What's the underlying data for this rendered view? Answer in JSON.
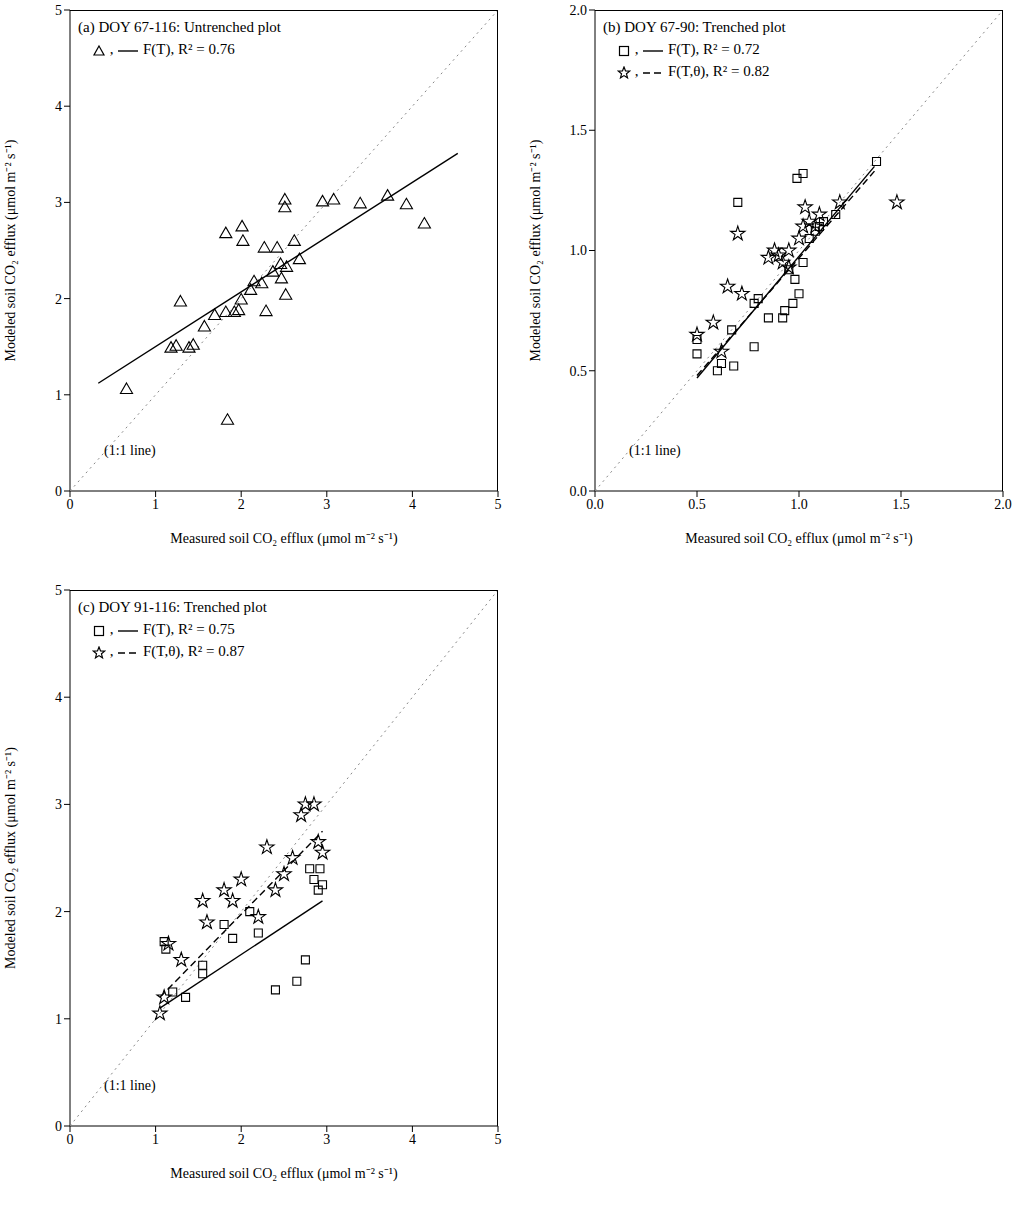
{
  "chart_data": [
    {
      "type": "scatter",
      "title": "(a) DOY 67-116: Untrenched plot",
      "x_label": "Measured soil CO₂ efflux (μmol m⁻² s⁻¹)",
      "y_label": "Modeled soil CO₂ efflux (μmol m⁻² s⁻¹)",
      "xlim": [
        0,
        5
      ],
      "ylim": [
        0,
        5
      ],
      "xticks": [
        0,
        1,
        2,
        3,
        4,
        5
      ],
      "yticks": [
        0,
        1,
        2,
        3,
        4,
        5
      ],
      "series": [
        {
          "name": "F(T), R² = 0.76",
          "marker": "triangle",
          "line_style": "solid",
          "color": "#000000",
          "x": [
            0.66,
            1.18,
            1.29,
            1.24,
            1.39,
            1.44,
            1.57,
            1.69,
            1.82,
            1.92,
            1.97,
            2.0,
            2.11,
            2.15,
            2.24,
            2.37,
            2.46,
            2.53,
            2.52,
            2.29,
            1.82,
            2.01,
            2.27,
            2.42,
            2.62,
            2.51,
            2.51,
            2.95,
            3.08,
            3.39,
            3.71,
            3.93,
            4.14,
            1.84,
            2.02,
            2.47,
            2.68
          ],
          "y": [
            1.05,
            1.48,
            1.96,
            1.5,
            1.48,
            1.51,
            1.7,
            1.82,
            1.85,
            1.85,
            1.87,
            1.98,
            2.08,
            2.17,
            2.15,
            2.27,
            2.35,
            2.32,
            2.03,
            1.86,
            2.67,
            2.74,
            2.52,
            2.52,
            2.59,
            2.94,
            3.02,
            3.0,
            3.02,
            2.98,
            3.06,
            2.97,
            2.77,
            0.73,
            2.59,
            2.2,
            2.4
          ],
          "fit_x": [
            0.33,
            4.53
          ],
          "fit_y": [
            1.12,
            3.51
          ]
        },
        {
          "name": "(1:1 line)",
          "type": "line",
          "line_style": "dotted",
          "color": "#888888",
          "x": [
            0,
            5
          ],
          "y": [
            0,
            5
          ]
        }
      ]
    },
    {
      "type": "scatter",
      "title": "(b) DOY 67-90: Trenched plot",
      "x_label": "Measured soil CO₂ efflux (μmol m⁻² s⁻¹)",
      "y_label": "Modeled soil CO₂ efflux (μmol m⁻² s⁻¹)",
      "xlim": [
        0,
        2
      ],
      "ylim": [
        0,
        2
      ],
      "xticks": [
        {
          "value": 0,
          "label": "0.0"
        },
        {
          "value": 0.5,
          "label": "0.5"
        },
        {
          "value": 1,
          "label": "1.0"
        },
        {
          "value": 1.5,
          "label": "1.5"
        },
        {
          "value": 2,
          "label": "2.0"
        }
      ],
      "yticks": [
        {
          "value": 0,
          "label": "0.0"
        },
        {
          "value": 0.5,
          "label": "0.5"
        },
        {
          "value": 1,
          "label": "1.0"
        },
        {
          "value": 1.5,
          "label": "1.5"
        },
        {
          "value": 2,
          "label": "2.0"
        }
      ],
      "series": [
        {
          "name": "F(T), R² = 0.72",
          "marker": "square",
          "line_style": "solid",
          "color": "#000000",
          "x": [
            0.5,
            0.5,
            0.6,
            0.62,
            0.68,
            0.7,
            0.78,
            0.78,
            0.8,
            0.85,
            0.92,
            0.93,
            0.97,
            1.0,
            0.98,
            1.02,
            0.99,
            1.02,
            1.05,
            1.08,
            1.1,
            1.12,
            1.18,
            1.38,
            0.67,
            0.95
          ],
          "y": [
            0.57,
            0.63,
            0.5,
            0.53,
            0.52,
            1.2,
            0.6,
            0.78,
            0.8,
            0.72,
            0.72,
            0.75,
            0.78,
            0.82,
            0.88,
            0.95,
            1.3,
            1.32,
            1.05,
            1.08,
            1.1,
            1.12,
            1.15,
            1.37,
            0.67,
            0.92
          ],
          "fit_x": [
            0.5,
            1.37
          ],
          "fit_y": [
            0.47,
            1.35
          ]
        },
        {
          "name": "F(T,θ), R² = 0.82",
          "marker": "star",
          "line_style": "dashed",
          "color": "#000000",
          "x": [
            0.5,
            0.58,
            0.62,
            0.65,
            0.7,
            0.72,
            0.85,
            0.88,
            0.9,
            0.92,
            0.95,
            1.0,
            1.02,
            1.03,
            1.05,
            1.08,
            1.1,
            1.2,
            1.48,
            0.95
          ],
          "y": [
            0.65,
            0.7,
            0.58,
            0.85,
            1.07,
            0.82,
            0.97,
            1.0,
            0.98,
            0.95,
            1.0,
            1.05,
            1.1,
            1.18,
            1.12,
            1.1,
            1.15,
            1.2,
            1.2,
            0.93
          ],
          "fit_x": [
            0.5,
            1.37
          ],
          "fit_y": [
            0.48,
            1.33
          ]
        },
        {
          "name": "(1:1 line)",
          "type": "line",
          "line_style": "dotted",
          "color": "#888888",
          "x": [
            0,
            2
          ],
          "y": [
            0,
            2
          ]
        }
      ]
    },
    {
      "type": "scatter",
      "title": "(c) DOY 91-116: Trenched plot",
      "x_label": "Measured soil CO₂ efflux (μmol m⁻² s⁻¹)",
      "y_label": "Modeled soil CO₂ efflux (μmol m⁻² s⁻¹)",
      "xlim": [
        0,
        5
      ],
      "ylim": [
        0,
        5
      ],
      "xticks": [
        0,
        1,
        2,
        3,
        4,
        5
      ],
      "yticks": [
        0,
        1,
        2,
        3,
        4,
        5
      ],
      "series": [
        {
          "name": "F(T), R² = 0.75",
          "marker": "square",
          "line_style": "solid",
          "color": "#000000",
          "x": [
            1.1,
            1.12,
            1.2,
            1.35,
            1.55,
            1.55,
            1.8,
            1.9,
            2.1,
            2.2,
            2.4,
            2.65,
            2.75,
            2.8,
            2.85,
            2.9,
            2.95,
            2.92
          ],
          "y": [
            1.72,
            1.65,
            1.25,
            1.2,
            1.5,
            1.42,
            1.88,
            1.75,
            2.0,
            1.8,
            1.27,
            1.35,
            1.55,
            2.4,
            2.3,
            2.2,
            2.25,
            2.4
          ],
          "fit_x": [
            1.05,
            2.95
          ],
          "fit_y": [
            1.1,
            2.1
          ]
        },
        {
          "name": "F(T,θ), R² = 0.87",
          "marker": "star",
          "line_style": "dashed",
          "color": "#000000",
          "x": [
            1.05,
            1.1,
            1.15,
            1.3,
            1.55,
            1.6,
            1.8,
            1.9,
            2.0,
            2.2,
            2.3,
            2.4,
            2.5,
            2.6,
            2.7,
            2.75,
            2.85,
            2.9,
            2.95
          ],
          "y": [
            1.05,
            1.2,
            1.7,
            1.55,
            2.1,
            1.9,
            2.2,
            2.1,
            2.3,
            1.95,
            2.6,
            2.2,
            2.35,
            2.5,
            2.9,
            3.0,
            3.0,
            2.65,
            2.55
          ],
          "fit_x": [
            1.05,
            2.95
          ],
          "fit_y": [
            1.2,
            2.75
          ]
        },
        {
          "name": "(1:1 line)",
          "type": "line",
          "line_style": "dotted",
          "color": "#888888",
          "x": [
            0,
            5
          ],
          "y": [
            0,
            5
          ]
        }
      ]
    }
  ]
}
